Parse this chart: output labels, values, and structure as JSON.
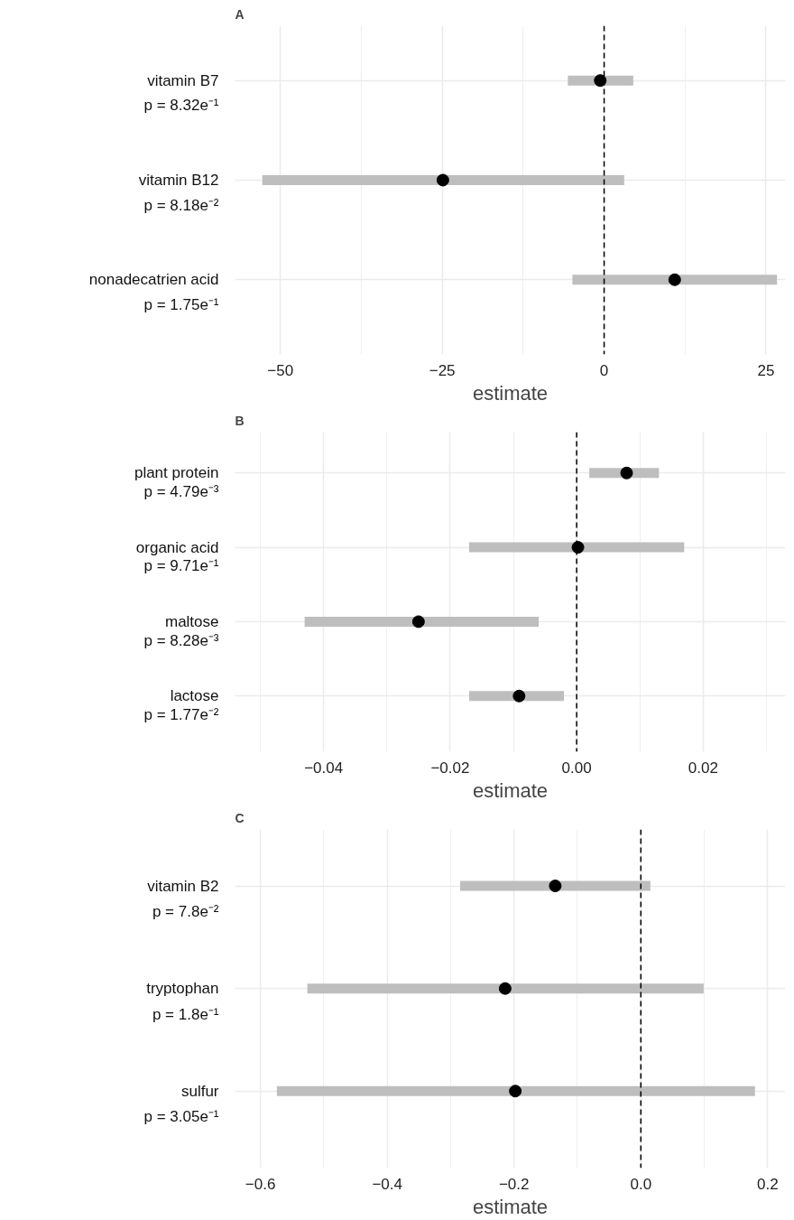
{
  "chart_data": [
    {
      "type": "scatter",
      "orientation": "horizontal",
      "title": "A",
      "xlabel": "estimate",
      "categories": [
        "vitamin B7",
        "vitamin B12",
        "nonadecatrien acid"
      ],
      "series": [
        {
          "color": "#000000",
          "values": [
            -0.6,
            -24.9,
            10.9
          ],
          "errors": [
            [
              -5.6,
              4.5
            ],
            [
              -52.8,
              3.1
            ],
            [
              -4.9,
              26.7
            ]
          ]
        }
      ],
      "xlim": [
        -57,
        28
      ],
      "xticks": [
        {
          "value": -50,
          "label": "−50"
        },
        {
          "value": -25,
          "label": "−25"
        },
        0,
        25
      ],
      "ref_lines": [
        {
          "axis": "x",
          "value": 0,
          "color": "#000000",
          "line_style": "dashed"
        }
      ],
      "annotations": [
        "p = 8.32e⁻¹",
        "p = 8.18e⁻²",
        "p = 1.75e⁻¹"
      ],
      "grid": true,
      "marker": "circle"
    },
    {
      "type": "scatter",
      "orientation": "horizontal",
      "title": "B",
      "xlabel": "estimate",
      "categories": [
        "plant protein",
        "organic acid",
        "maltose",
        "lactose"
      ],
      "series": [
        {
          "color": "#000000",
          "values": [
            0.0079,
            0.0002,
            -0.025,
            -0.0091
          ],
          "errors": [
            [
              0.002,
              0.013
            ],
            [
              -0.017,
              0.017
            ],
            [
              -0.043,
              -0.006
            ],
            [
              -0.017,
              -0.002
            ]
          ]
        }
      ],
      "xlim": [
        -0.054,
        0.033
      ],
      "xticks": [
        {
          "value": -0.04,
          "label": "−0.04"
        },
        {
          "value": -0.02,
          "label": "−0.02"
        },
        {
          "value": 0,
          "label": "0.00"
        },
        0.02
      ],
      "ref_lines": [
        {
          "axis": "x",
          "value": 0,
          "color": "#000000",
          "line_style": "dashed"
        }
      ],
      "annotations": [
        "p = 4.79e⁻³",
        "p = 9.71e⁻¹",
        "p = 8.28e⁻³",
        "p = 1.77e⁻²"
      ],
      "grid": true,
      "marker": "circle"
    },
    {
      "type": "scatter",
      "orientation": "horizontal",
      "title": "C",
      "xlabel": "estimate",
      "categories": [
        "vitamin B2",
        "tryptophan",
        "sulfur"
      ],
      "series": [
        {
          "color": "#000000",
          "values": [
            -0.135,
            -0.214,
            -0.198
          ],
          "errors": [
            [
              -0.285,
              0.015
            ],
            [
              -0.526,
              0.099
            ],
            [
              -0.574,
              0.18
            ]
          ]
        }
      ],
      "xlim": [
        -0.64,
        0.228
      ],
      "xticks": [
        {
          "value": -0.6,
          "label": "−0.6"
        },
        {
          "value": -0.4,
          "label": "−0.4"
        },
        {
          "value": -0.2,
          "label": "−0.2"
        },
        {
          "value": 0,
          "label": "0.0"
        },
        0.2
      ],
      "ref_lines": [
        {
          "axis": "x",
          "value": 0,
          "color": "#000000",
          "line_style": "dashed"
        }
      ],
      "annotations": [
        "p = 7.8e⁻²",
        "p = 1.8e⁻¹",
        "p = 3.05e⁻¹"
      ],
      "grid": true,
      "marker": "circle"
    }
  ]
}
